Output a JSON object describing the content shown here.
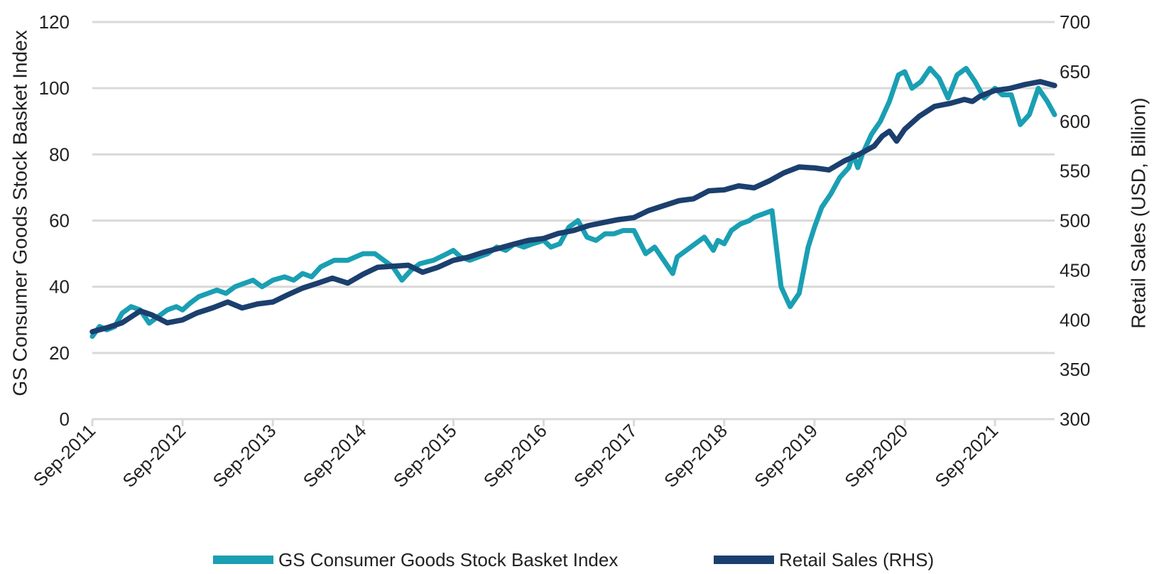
{
  "chart_data": {
    "type": "line",
    "title": "",
    "ylabel": "GS Consumer Goods Stock Basket Index",
    "ylabel_right": "Retail Sales (USD, Billion)",
    "ylim": [
      0,
      120
    ],
    "yticks": [
      "0",
      "20",
      "40",
      "60",
      "80",
      "100",
      "120"
    ],
    "ylim_right": [
      300,
      700
    ],
    "yticks_right": [
      "300",
      "350",
      "400",
      "450",
      "500",
      "550",
      "600",
      "650",
      "700"
    ],
    "xlim": [
      2011.67,
      2022.33
    ],
    "xticks": [
      "Sep-2011",
      "Sep-2012",
      "Sep-2013",
      "Sep-2014",
      "Sep-2015",
      "Sep-2016",
      "Sep-2017",
      "Sep-2018",
      "Sep-2019",
      "Sep-2020",
      "Sep-2021"
    ],
    "grid": true,
    "legend_position": "bottom",
    "series": [
      {
        "name": "GS Consumer Goods Stock Basket Index",
        "axis": "left",
        "color": "#1a9fb3",
        "x": [
          2011.67,
          2011.75,
          2011.83,
          2011.92,
          2012.0,
          2012.1,
          2012.2,
          2012.3,
          2012.4,
          2012.5,
          2012.6,
          2012.67,
          2012.75,
          2012.85,
          2012.95,
          2013.05,
          2013.15,
          2013.25,
          2013.35,
          2013.45,
          2013.55,
          2013.67,
          2013.8,
          2013.9,
          2014.0,
          2014.1,
          2014.2,
          2014.35,
          2014.5,
          2014.67,
          2014.8,
          2014.9,
          2015.0,
          2015.1,
          2015.2,
          2015.3,
          2015.45,
          2015.6,
          2015.67,
          2015.75,
          2015.85,
          2015.95,
          2016.05,
          2016.15,
          2016.25,
          2016.35,
          2016.45,
          2016.55,
          2016.67,
          2016.75,
          2016.85,
          2016.95,
          2017.05,
          2017.15,
          2017.25,
          2017.35,
          2017.45,
          2017.55,
          2017.67,
          2017.8,
          2017.9,
          2018.0,
          2018.1,
          2018.15,
          2018.25,
          2018.35,
          2018.45,
          2018.55,
          2018.6,
          2018.67,
          2018.75,
          2018.85,
          2018.95,
          2019.0,
          2019.1,
          2019.2,
          2019.3,
          2019.4,
          2019.5,
          2019.6,
          2019.67,
          2019.75,
          2019.85,
          2019.95,
          2020.05,
          2020.1,
          2020.15,
          2020.2,
          2020.3,
          2020.4,
          2020.5,
          2020.6,
          2020.67,
          2020.75,
          2020.85,
          2020.95,
          2021.05,
          2021.15,
          2021.25,
          2021.35,
          2021.45,
          2021.55,
          2021.67,
          2021.75,
          2021.85,
          2021.95,
          2022.05,
          2022.15,
          2022.25,
          2022.33
        ],
        "values": [
          25,
          28,
          27,
          28,
          32,
          34,
          33,
          29,
          31,
          33,
          34,
          33,
          35,
          37,
          38,
          39,
          38,
          40,
          41,
          42,
          40,
          42,
          43,
          42,
          44,
          43,
          46,
          48,
          48,
          50,
          50,
          48,
          46,
          42,
          45,
          47,
          48,
          50,
          51,
          49,
          48,
          49,
          50,
          52,
          51,
          53,
          52,
          53,
          54,
          52,
          53,
          58,
          60,
          55,
          54,
          56,
          56,
          57,
          57,
          50,
          52,
          48,
          44,
          49,
          51,
          53,
          55,
          51,
          54,
          53,
          57,
          59,
          60,
          61,
          62,
          63,
          40,
          34,
          38,
          52,
          58,
          64,
          68,
          73,
          76,
          80,
          76,
          80,
          86,
          90,
          96,
          104,
          105,
          100,
          102,
          106,
          103,
          97,
          104,
          106,
          102,
          97,
          100,
          98,
          98,
          89,
          92,
          100,
          96,
          92
        ]
      },
      {
        "name": "Retail Sales (RHS)",
        "axis": "right",
        "color": "#1b3f6e",
        "x": [
          2011.67,
          2011.83,
          2012.0,
          2012.2,
          2012.33,
          2012.5,
          2012.67,
          2012.83,
          2013.0,
          2013.17,
          2013.33,
          2013.5,
          2013.67,
          2013.83,
          2014.0,
          2014.17,
          2014.33,
          2014.5,
          2014.67,
          2014.83,
          2015.0,
          2015.17,
          2015.33,
          2015.5,
          2015.67,
          2015.83,
          2016.0,
          2016.17,
          2016.33,
          2016.5,
          2016.67,
          2016.83,
          2017.0,
          2017.17,
          2017.33,
          2017.5,
          2017.67,
          2017.83,
          2018.0,
          2018.17,
          2018.33,
          2018.5,
          2018.67,
          2018.83,
          2019.0,
          2019.17,
          2019.33,
          2019.5,
          2019.67,
          2019.83,
          2020.0,
          2020.17,
          2020.33,
          2020.42,
          2020.5,
          2020.58,
          2020.67,
          2020.83,
          2021.0,
          2021.17,
          2021.33,
          2021.42,
          2021.5,
          2021.58,
          2021.67,
          2021.83,
          2022.0,
          2022.17,
          2022.33
        ],
        "values": [
          388,
          392,
          397,
          409,
          405,
          397,
          400,
          407,
          412,
          418,
          412,
          416,
          418,
          425,
          432,
          437,
          442,
          437,
          446,
          453,
          454,
          455,
          448,
          453,
          460,
          463,
          468,
          472,
          476,
          480,
          482,
          487,
          490,
          495,
          498,
          501,
          503,
          510,
          515,
          520,
          522,
          530,
          531,
          535,
          533,
          540,
          548,
          554,
          553,
          551,
          560,
          567,
          575,
          585,
          590,
          580,
          592,
          605,
          615,
          618,
          622,
          620,
          625,
          628,
          631,
          633,
          637,
          640,
          636
        ]
      }
    ]
  },
  "legend": [
    {
      "label": "GS Consumer Goods Stock Basket Index",
      "color": "#1a9fb3"
    },
    {
      "label": "Retail Sales (RHS)",
      "color": "#1b3f6e"
    }
  ]
}
